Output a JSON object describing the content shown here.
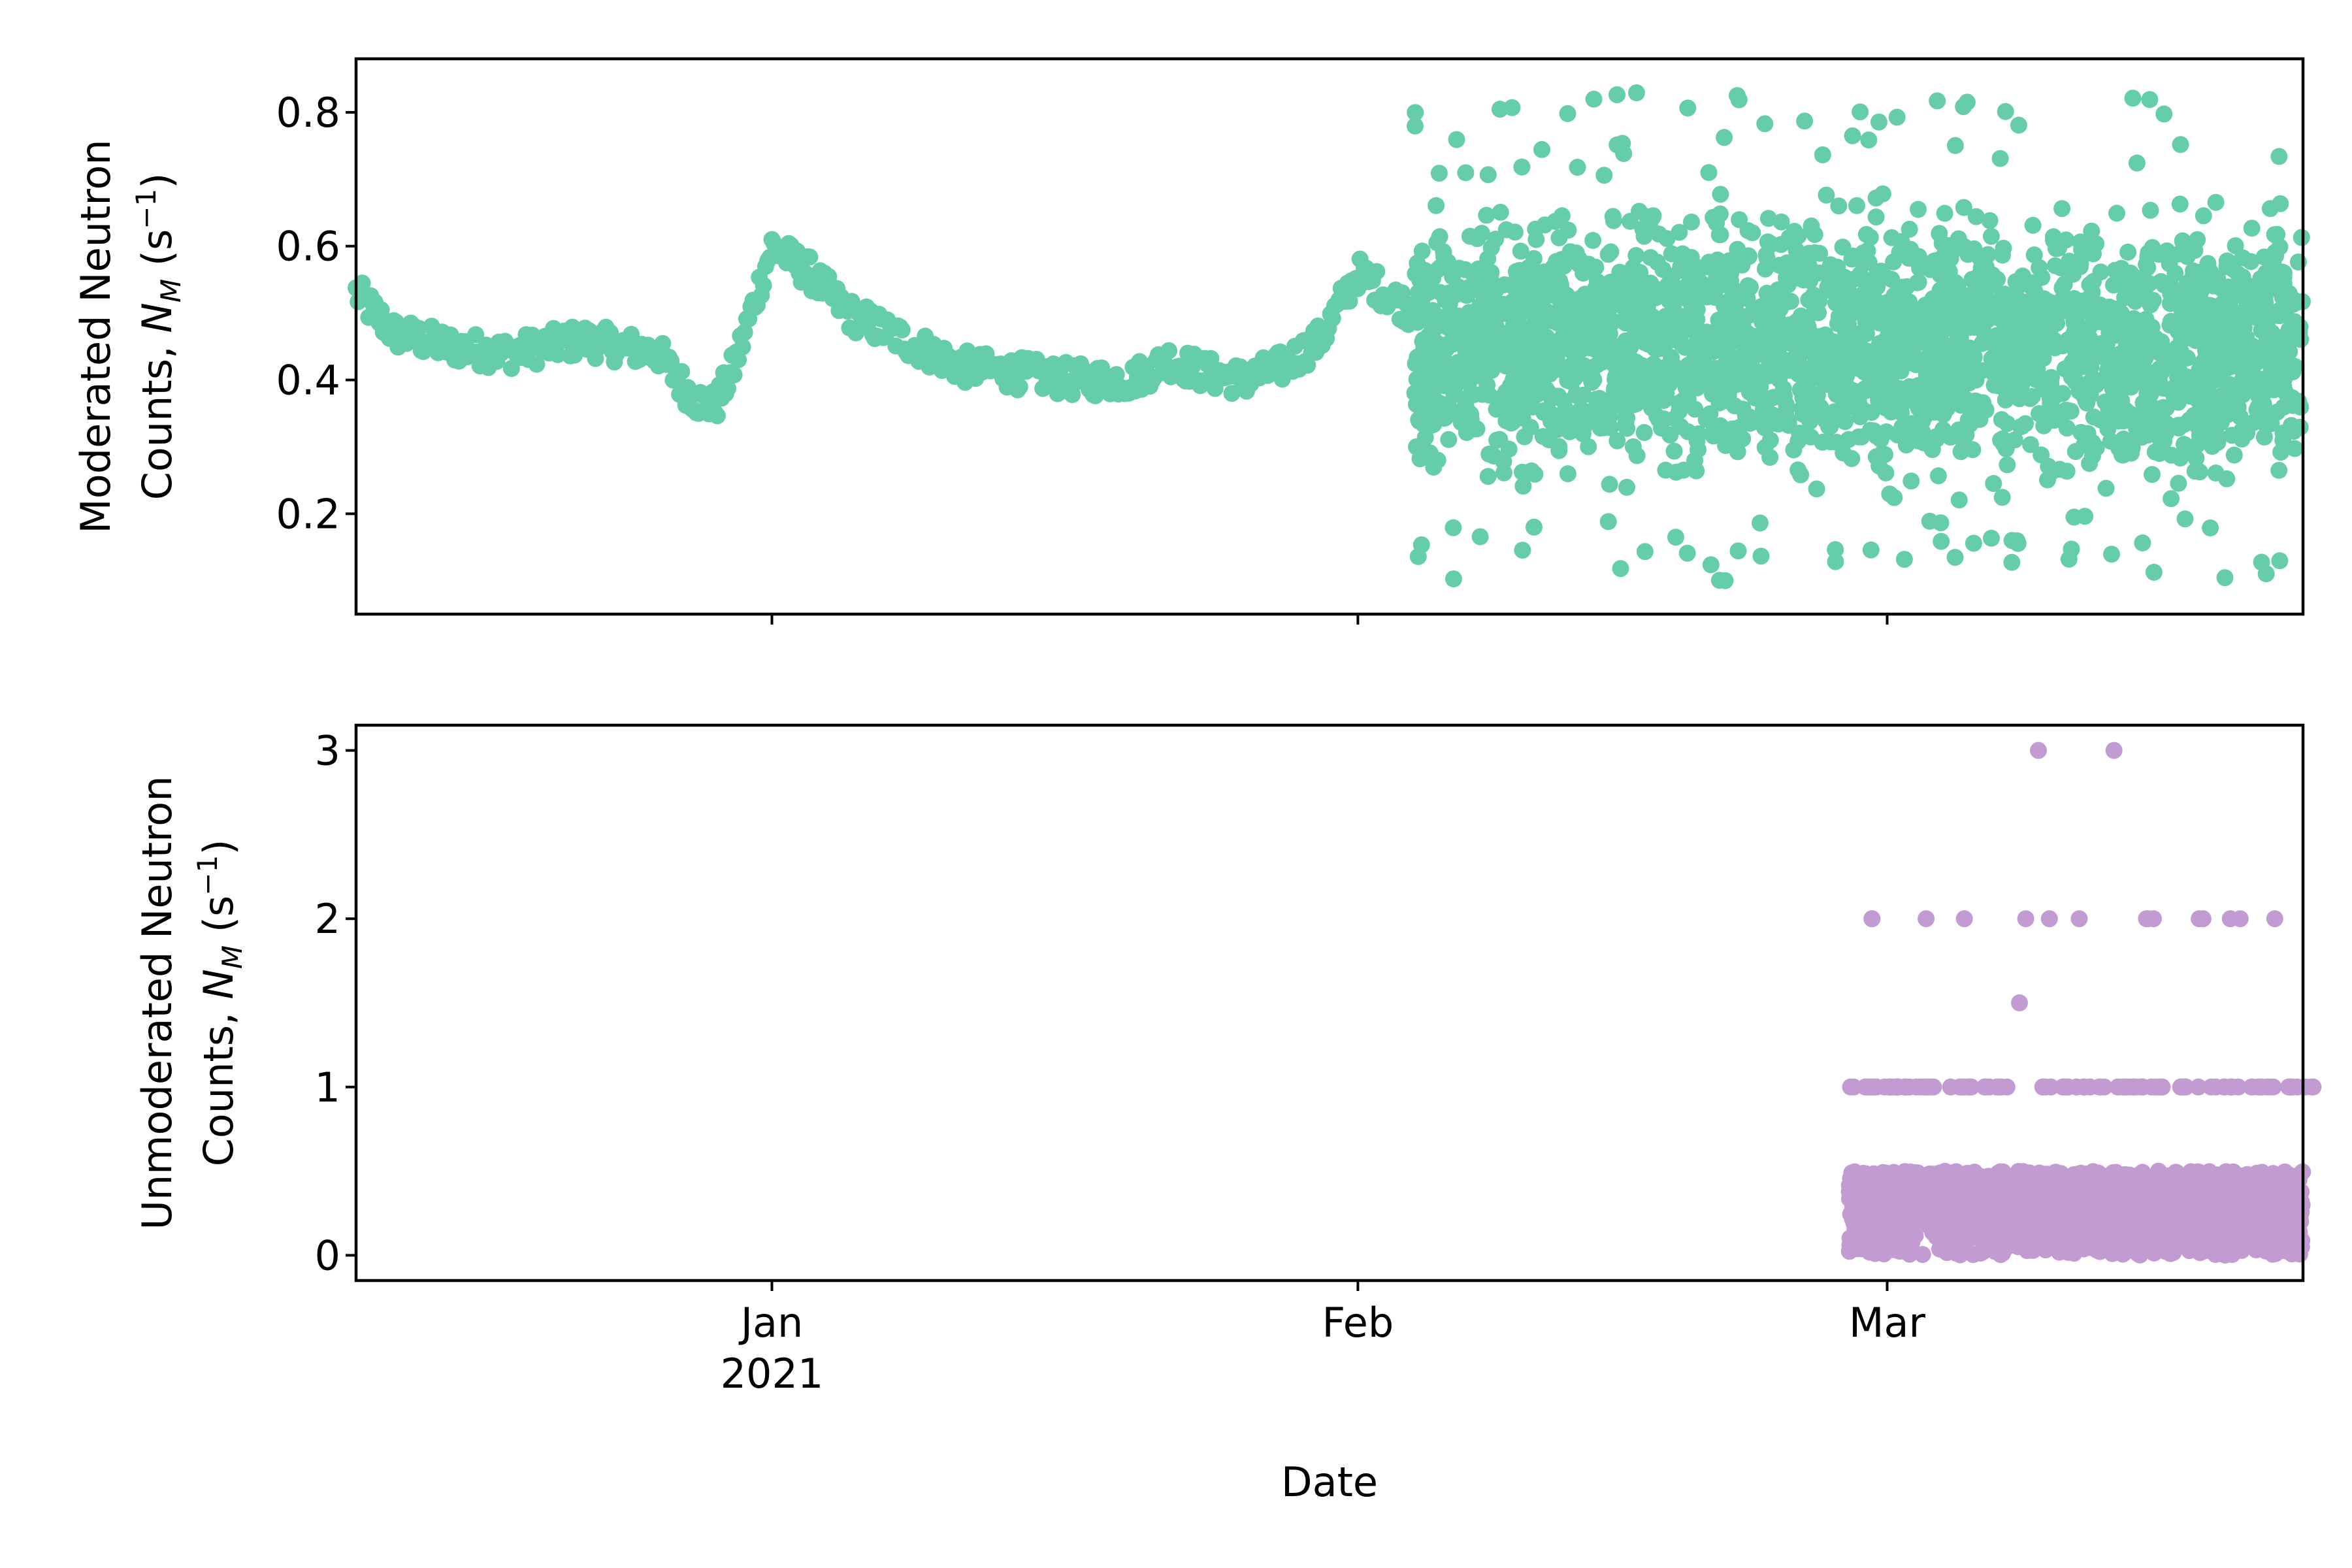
{
  "chart_data": [
    {
      "type": "scatter",
      "ylabel_line1": "Moderated Neutron",
      "ylabel_line2_prefix": "Counts, ",
      "ylabel_symbol": "N",
      "ylabel_subscript": "M",
      "ylabel_unit_open": " (s",
      "ylabel_unit_exp": "−1",
      "ylabel_unit_close": ")",
      "xlabel": "",
      "x_range": [
        "2020-12-10",
        "2021-03-23"
      ],
      "ylim": [
        0.05,
        0.88
      ],
      "yticks": [
        0.2,
        0.4,
        0.6,
        0.8
      ],
      "ytick_labels": [
        "0.2",
        "0.4",
        "0.6",
        "0.8"
      ],
      "xticks": [
        "2021-01-01",
        "2021-02-01",
        "2021-03-01"
      ],
      "color": "#66cdaa",
      "series": [
        {
          "baseline": {
            "x": [
              "2020-12-10",
              "2020-12-12",
              "2020-12-15",
              "2020-12-18",
              "2020-12-20",
              "2020-12-22",
              "2020-12-24",
              "2020-12-26",
              "2020-12-27",
              "2020-12-28",
              "2020-12-29",
              "2020-12-30",
              "2021-01-01",
              "2021-01-03",
              "2021-01-05",
              "2021-01-08",
              "2021-01-11",
              "2021-01-14",
              "2021-01-17",
              "2021-01-20",
              "2021-01-22",
              "2021-01-24",
              "2021-01-26",
              "2021-01-28",
              "2021-01-30",
              "2021-02-01",
              "2021-02-04"
            ],
            "y": [
              0.53,
              0.47,
              0.45,
              0.44,
              0.45,
              0.46,
              0.45,
              0.44,
              0.4,
              0.37,
              0.36,
              0.42,
              0.6,
              0.56,
              0.5,
              0.46,
              0.42,
              0.41,
              0.4,
              0.4,
              0.43,
              0.41,
              0.4,
              0.42,
              0.46,
              0.56,
              0.5
            ]
          },
          "dense_band": {
            "x_start": "2021-02-04",
            "x_end": "2021-03-23",
            "y_low_approx": 0.2,
            "y_high_approx": 0.7,
            "outliers_high_approx": 0.83,
            "outliers_low_approx": 0.1
          }
        }
      ]
    },
    {
      "type": "scatter",
      "ylabel_line1": "Unmoderated Neutron",
      "ylabel_line2_prefix": "Counts, ",
      "ylabel_symbol": "N",
      "ylabel_subscript": "M",
      "ylabel_unit_open": " (s",
      "ylabel_unit_exp": "−1",
      "ylabel_unit_close": ")",
      "xlabel": "Date",
      "x_range": [
        "2020-12-10",
        "2021-03-23"
      ],
      "ylim": [
        -0.15,
        3.15
      ],
      "yticks": [
        0,
        1,
        2,
        3
      ],
      "ytick_labels": [
        "0",
        "1",
        "2",
        "3"
      ],
      "xticks": [
        "2021-01-01",
        "2021-02-01",
        "2021-03-01"
      ],
      "xtick_labels": [
        [
          "Jan",
          "2021"
        ],
        [
          "Feb"
        ],
        [
          "Mar"
        ]
      ],
      "color": "#c39bd3",
      "series": [
        {
          "dense_band": {
            "x_start": "2021-02-27",
            "x_end": "2021-03-23",
            "y_low_approx": 0.0,
            "y_high_approx": 0.5
          },
          "level_1": {
            "y": 1,
            "x": [
              "2021-02-27",
              "2021-02-28",
              "2021-03-01",
              "2021-03-02",
              "2021-03-04",
              "2021-03-06",
              "2021-03-09",
              "2021-03-11",
              "2021-03-13",
              "2021-03-14",
              "2021-03-16",
              "2021-03-18",
              "2021-03-20",
              "2021-03-22"
            ]
          },
          "level_2": {
            "y": 2,
            "x": [
              "2021-02-28",
              "2021-03-03",
              "2021-03-05",
              "2021-03-08",
              "2021-03-09",
              "2021-03-11",
              "2021-03-14",
              "2021-03-15",
              "2021-03-17",
              "2021-03-19",
              "2021-03-21"
            ]
          },
          "isolated_points": [
            {
              "x": "2021-03-08",
              "y": 1.5
            },
            {
              "x": "2021-03-09",
              "y": 3
            },
            {
              "x": "2021-03-13",
              "y": 3
            }
          ]
        }
      ]
    }
  ]
}
